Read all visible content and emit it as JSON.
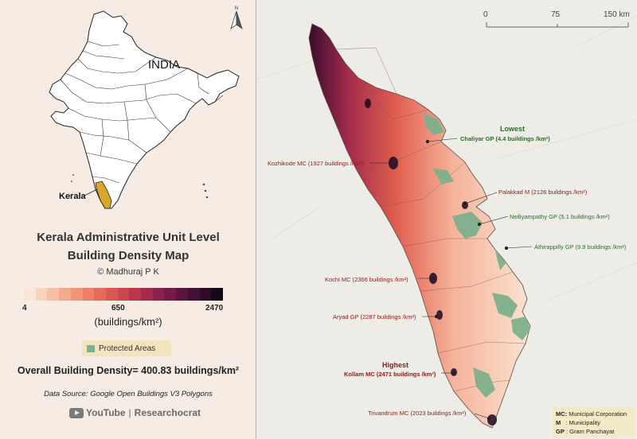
{
  "inset": {
    "country_label": "INDIA",
    "state_label": "Kerala"
  },
  "title": {
    "line1": "Kerala Administrative Unit Level",
    "line2": "Building Density Map",
    "credit": "© Madhuraj P K"
  },
  "legend": {
    "min_label": "4",
    "mid_label": "650",
    "max_label": "2470",
    "units": "(buildings/km²)",
    "colors": [
      "#fbe5d6",
      "#f9d2bd",
      "#f7bea4",
      "#f5a98c",
      "#f29477",
      "#ee7f66",
      "#e66a5a",
      "#da5651",
      "#cb464d",
      "#b8374b",
      "#a42b4b",
      "#8e214b",
      "#761a47",
      "#5d1540",
      "#441036",
      "#2b0b29",
      "#14081a"
    ],
    "protected_label": "Protected Areas",
    "protected_color": "#7fb08c"
  },
  "overall": "Overall Building Density= 400.83 buildings/km²",
  "source": "Data Source:  Google Open Buildings V3 Polygons",
  "branding": {
    "youtube": "YouTube",
    "channel": "Researchocrat"
  },
  "scalebar": {
    "labels": [
      "0",
      "75",
      "150 km"
    ]
  },
  "annotations": {
    "lowest_header": "Lowest",
    "highest_header": "Highest",
    "labels": [
      {
        "text": "Chaliyar GP (4.4 buildings /km²)",
        "color": "green",
        "bold": true
      },
      {
        "text": "Kozhikode MC (1927 buildings /km²)",
        "color": "red",
        "bold": false
      },
      {
        "text": "Palakkad M (2126 buildings /km²)",
        "color": "red",
        "bold": false
      },
      {
        "text": "Nelliyampathy GP (5.1 buildings /km²)",
        "color": "green",
        "bold": false
      },
      {
        "text": "Athirappilly GP (9.9 buildings /km²)",
        "color": "green",
        "bold": false
      },
      {
        "text": "Kochi MC (2366 buildings /km²)",
        "color": "red",
        "bold": false
      },
      {
        "text": "Aryad GP (2287 buildings /km²)",
        "color": "red",
        "bold": false
      },
      {
        "text": "Kollam MC (2471 buildings /km²)",
        "color": "red",
        "bold": true
      },
      {
        "text": "Trivandrum MC (2023 buildings /km²)",
        "color": "red",
        "bold": false
      }
    ]
  },
  "abbreviations": [
    {
      "key": "MC:",
      "value": "Municipal Corporation"
    },
    {
      "key": "M",
      "value": ": Municipality"
    },
    {
      "key": "GP",
      "value": ": Gram Panchayat"
    }
  ]
}
